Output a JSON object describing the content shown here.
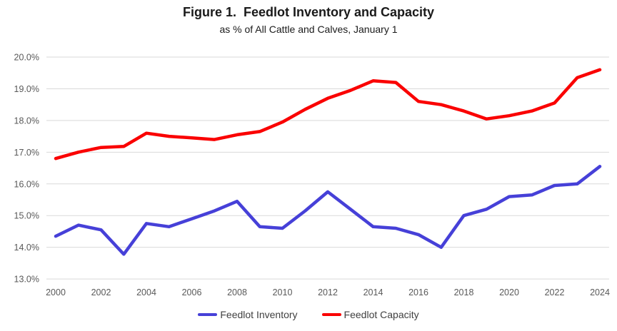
{
  "chart_data": {
    "type": "line",
    "title": "Figure 1.  Feedlot Inventory and Capacity",
    "subtitle": "as % of All Cattle and Calves, January 1",
    "x": [
      2000,
      2001,
      2002,
      2003,
      2004,
      2005,
      2006,
      2007,
      2008,
      2009,
      2010,
      2011,
      2012,
      2013,
      2014,
      2015,
      2016,
      2017,
      2018,
      2019,
      2020,
      2021,
      2022,
      2023,
      2024
    ],
    "x_tick_labels": [
      "2000",
      "2002",
      "2004",
      "2006",
      "2008",
      "2010",
      "2012",
      "2014",
      "2016",
      "2018",
      "2020",
      "2022",
      "2024"
    ],
    "y_tick_labels": [
      "20.0%",
      "19.0%",
      "18.0%",
      "17.0%",
      "16.0%",
      "15.0%",
      "14.0%",
      "13.0%"
    ],
    "ylim": [
      13.0,
      20.0
    ],
    "grid": "horizontal",
    "legend_position": "bottom",
    "series": [
      {
        "name": "Feedlot Inventory",
        "color": "#4640D8",
        "values": [
          14.35,
          14.7,
          14.55,
          13.78,
          14.75,
          14.65,
          14.9,
          15.15,
          15.45,
          14.65,
          14.6,
          15.15,
          15.75,
          15.2,
          14.65,
          14.6,
          14.4,
          14.0,
          15.0,
          15.2,
          15.6,
          15.65,
          15.95,
          16.0,
          16.55
        ]
      },
      {
        "name": "Feedlot Capacity",
        "color": "#FA0000",
        "values": [
          16.8,
          17.0,
          17.15,
          17.18,
          17.6,
          17.5,
          17.45,
          17.4,
          17.55,
          17.65,
          17.95,
          18.35,
          18.7,
          18.95,
          19.25,
          19.2,
          18.6,
          18.5,
          18.3,
          18.05,
          18.15,
          18.3,
          18.55,
          19.35,
          19.6
        ]
      }
    ],
    "colors": {
      "gridline": "#D9D9D9",
      "tick_label": "#595959",
      "legend_text": "#404040",
      "title_text": "#1a1a1a",
      "background": "#FFFFFF"
    }
  }
}
